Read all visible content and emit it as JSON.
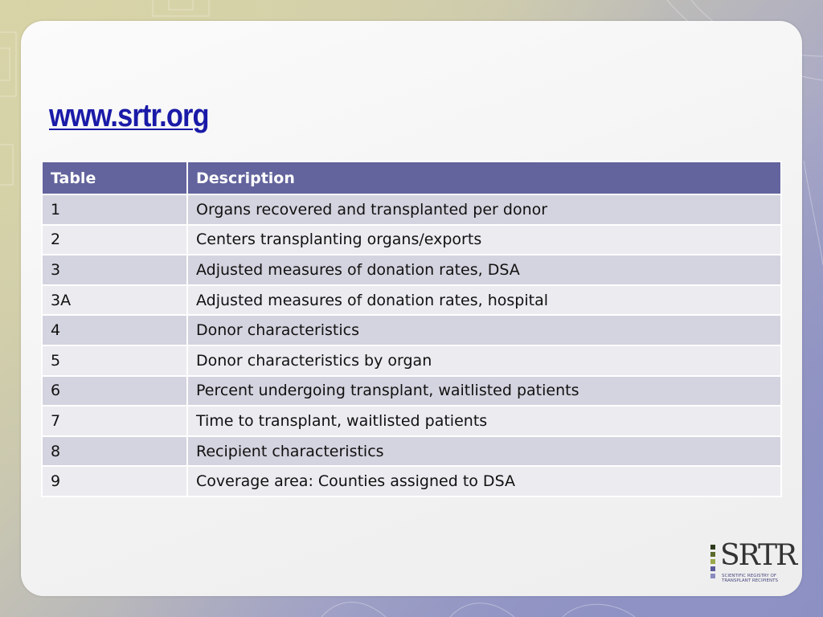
{
  "slide": {
    "title": "www.srtr.org"
  },
  "table": {
    "headers": [
      "Table",
      "Description"
    ],
    "rows": [
      {
        "num": "1",
        "desc": "Organs recovered and transplanted per donor"
      },
      {
        "num": "2",
        "desc": "Centers transplanting organs/exports"
      },
      {
        "num": "3",
        "desc": "Adjusted measures of donation rates, DSA"
      },
      {
        "num": "3A",
        "desc": "Adjusted measures of donation rates, hospital"
      },
      {
        "num": "4",
        "desc": "Donor characteristics"
      },
      {
        "num": "5",
        "desc": "Donor characteristics by organ"
      },
      {
        "num": "6",
        "desc": "Percent undergoing transplant, waitlisted patients"
      },
      {
        "num": "7",
        "desc": "Time to transplant, waitlisted patients"
      },
      {
        "num": "8",
        "desc": "Recipient characteristics"
      },
      {
        "num": "9",
        "desc": "Coverage area: Counties assigned to DSA"
      }
    ]
  },
  "logo": {
    "text": "SRTR",
    "subtitle_line1": "SCIENTIFIC REGISTRY OF",
    "subtitle_line2": "TRANSPLANT RECIPIENTS"
  },
  "colors": {
    "title": "#1a1aa8",
    "header_bg": "#63649d",
    "row_odd": "#d4d4e0",
    "row_even": "#ebebf0"
  }
}
